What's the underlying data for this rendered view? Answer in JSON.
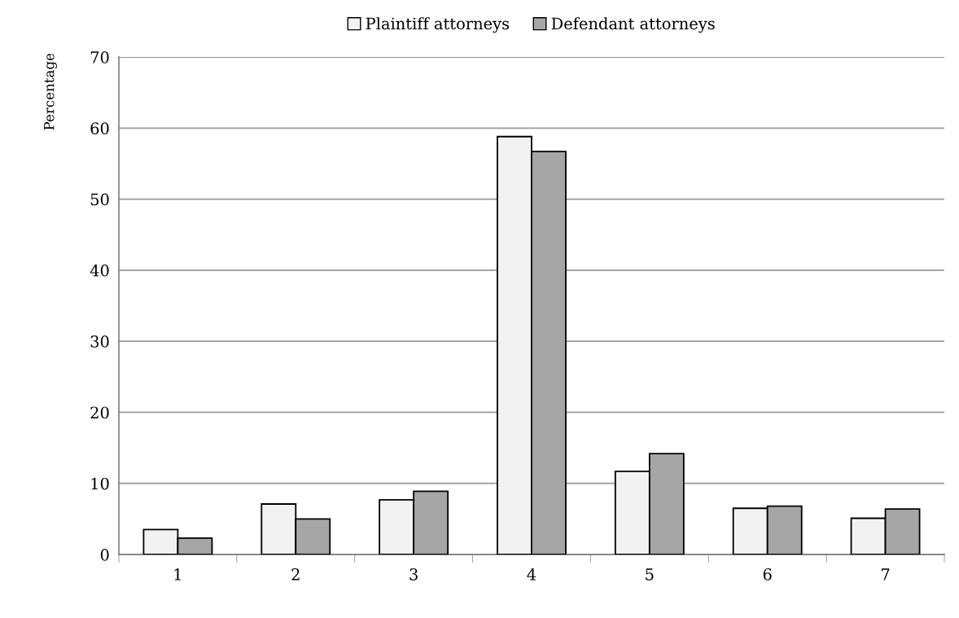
{
  "chart_data": {
    "type": "bar",
    "ylabel": "Percentage",
    "categories": [
      "1",
      "2",
      "3",
      "4",
      "5",
      "6",
      "7"
    ],
    "series": [
      {
        "name": "Plaintiff attorneys",
        "color": "#f2f2f2",
        "values": [
          3.5,
          7.1,
          7.7,
          58.8,
          11.7,
          6.5,
          5.1
        ]
      },
      {
        "name": "Defendant attorneys",
        "color": "#a6a6a6",
        "values": [
          2.3,
          5.0,
          8.9,
          56.7,
          14.2,
          6.8,
          6.4
        ]
      }
    ],
    "ylim": [
      0,
      70
    ],
    "yticks": [
      0,
      10,
      20,
      30,
      40,
      50,
      60,
      70
    ],
    "grid": "y",
    "legend": "top"
  }
}
